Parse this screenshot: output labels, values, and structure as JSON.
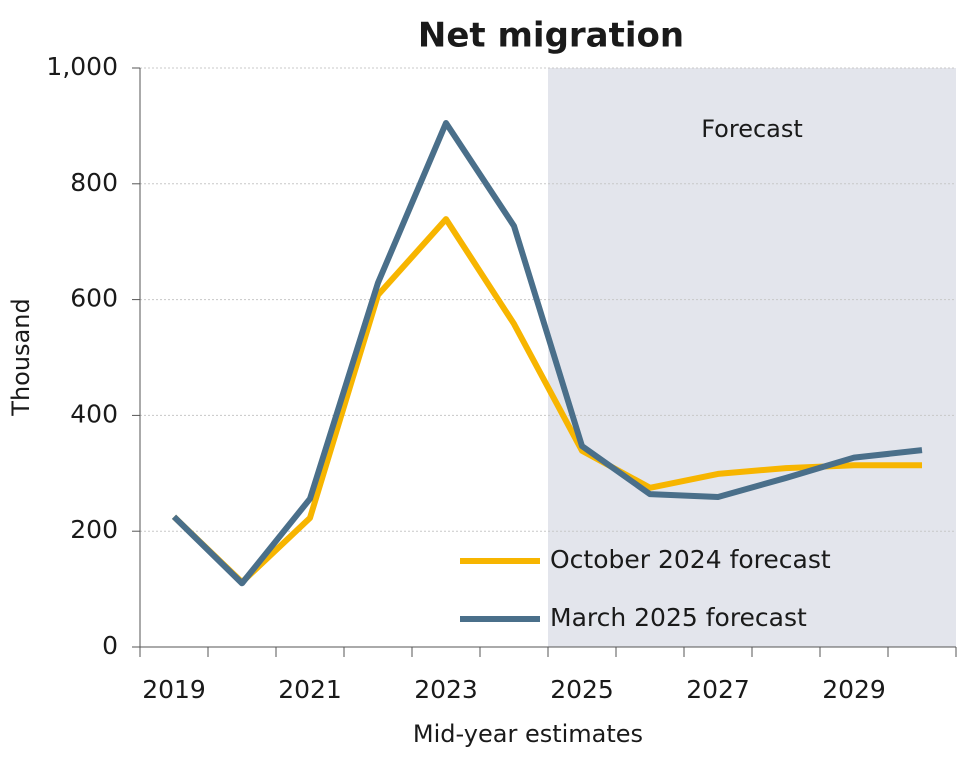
{
  "chart_data": {
    "type": "line",
    "title": "Net migration",
    "x_label": "Mid-year estimates",
    "y_label": "Thousand",
    "annotation": "Forecast",
    "categories": [
      "2019",
      null,
      "2021",
      null,
      "2023",
      null,
      "2025",
      null,
      "2027",
      null,
      "2029",
      null
    ],
    "series": [
      {
        "name": "October 2024 forecast",
        "color": "#f7b500",
        "values": [
          225,
          112,
          223,
          608,
          739,
          558,
          339,
          275,
          299,
          309,
          314,
          314
        ]
      },
      {
        "name": "March 2025 forecast",
        "color": "#4a6f8a",
        "values": [
          225,
          110,
          256,
          629,
          905,
          727,
          347,
          264,
          259,
          292,
          327,
          340
        ]
      }
    ],
    "ylim": [
      0,
      1000
    ],
    "yticks": [
      0,
      200,
      400,
      600,
      800,
      {
        "value": 1000,
        "label": "1,000"
      }
    ],
    "grid": true
  }
}
